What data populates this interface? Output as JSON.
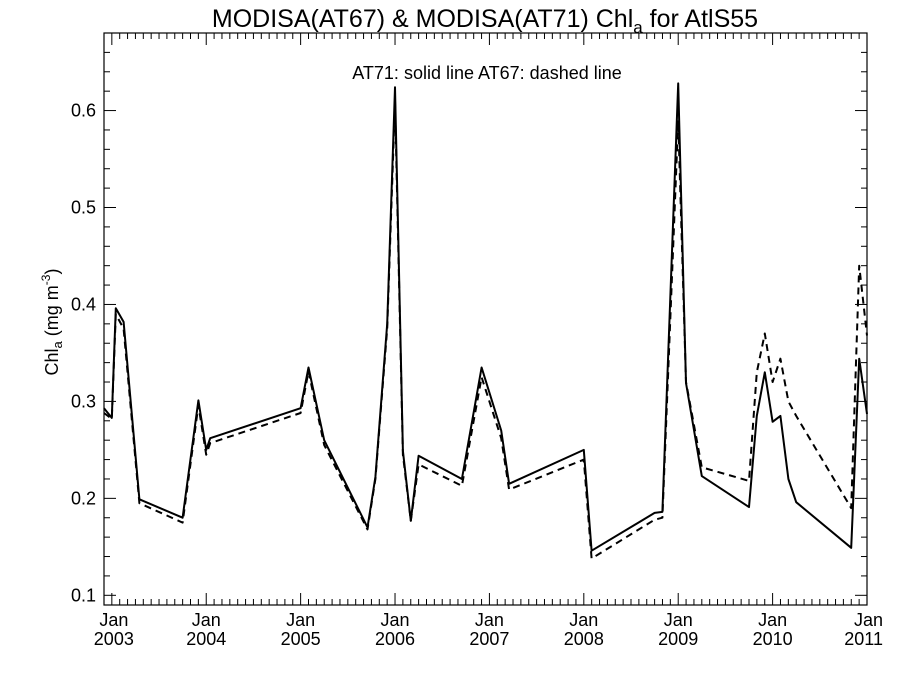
{
  "chart_data": {
    "type": "line",
    "title": {
      "main": "MODISA(AT67) & MODISA(AT71)  Chl",
      "sub": "a",
      "suffix": " for AtlS55"
    },
    "ylabel": {
      "base": "Chl",
      "sub": "a",
      "unit": " (mg m",
      "sup": "-3",
      "close": ")"
    },
    "annotation": "AT71: solid line   AT67: dashed line",
    "xlim": [
      2002.917,
      2011.0
    ],
    "ylim": [
      0.09,
      0.68
    ],
    "x_ticks": [
      {
        "x": 2003.0,
        "month": "Jan",
        "year": "2003"
      },
      {
        "x": 2004.0,
        "month": "Jan",
        "year": "2004"
      },
      {
        "x": 2005.0,
        "month": "Jan",
        "year": "2005"
      },
      {
        "x": 2006.0,
        "month": "Jan",
        "year": "2006"
      },
      {
        "x": 2007.0,
        "month": "Jan",
        "year": "2007"
      },
      {
        "x": 2008.0,
        "month": "Jan",
        "year": "2008"
      },
      {
        "x": 2009.0,
        "month": "Jan",
        "year": "2009"
      },
      {
        "x": 2010.0,
        "month": "Jan",
        "year": "2010"
      },
      {
        "x": 2011.0,
        "month": "Jan",
        "year": "2011"
      }
    ],
    "y_ticks": [
      "0.1",
      "0.2",
      "0.3",
      "0.4",
      "0.5",
      "0.6"
    ],
    "series": [
      {
        "name": "AT71",
        "style": "solid",
        "x": [
          2002.917,
          2003.0,
          2003.042,
          2003.125,
          2003.292,
          2003.75,
          2003.917,
          2004.0,
          2004.042,
          2005.0,
          2005.083,
          2005.25,
          2005.708,
          2005.792,
          2005.917,
          2006.0,
          2006.083,
          2006.167,
          2006.25,
          2006.708,
          2006.917,
          2007.125,
          2007.208,
          2008.0,
          2008.083,
          2008.75,
          2008.833,
          2009.0,
          2009.083,
          2009.25,
          2009.75,
          2009.833,
          2009.917,
          2010.0,
          2010.083,
          2010.167,
          2010.25,
          2010.833,
          2010.917,
          2011.0
        ],
        "values": [
          0.293,
          0.283,
          0.396,
          0.382,
          0.199,
          0.18,
          0.301,
          0.25,
          0.262,
          0.293,
          0.335,
          0.26,
          0.17,
          0.222,
          0.38,
          0.624,
          0.249,
          0.177,
          0.244,
          0.22,
          0.335,
          0.27,
          0.215,
          0.25,
          0.146,
          0.185,
          0.186,
          0.628,
          0.319,
          0.223,
          0.191,
          0.285,
          0.33,
          0.279,
          0.285,
          0.22,
          0.196,
          0.149,
          0.344,
          0.287
        ]
      },
      {
        "name": "AT67",
        "style": "dashed",
        "x": [
          2002.917,
          2003.0,
          2003.042,
          2003.125,
          2003.292,
          2003.75,
          2003.917,
          2004.0,
          2004.042,
          2005.0,
          2005.083,
          2005.25,
          2005.708,
          2005.792,
          2005.917,
          2006.0,
          2006.083,
          2006.167,
          2006.25,
          2006.708,
          2006.917,
          2007.125,
          2007.208,
          2008.0,
          2008.083,
          2008.75,
          2008.833,
          2009.0,
          2009.083,
          2009.25,
          2009.75,
          2009.833,
          2009.917,
          2010.0,
          2010.083,
          2010.167,
          2010.25,
          2010.833,
          2010.917,
          2011.0
        ],
        "values": [
          0.288,
          0.282,
          0.39,
          0.375,
          0.195,
          0.175,
          0.296,
          0.245,
          0.257,
          0.288,
          0.331,
          0.255,
          0.168,
          0.22,
          0.375,
          0.61,
          0.245,
          0.177,
          0.235,
          0.213,
          0.325,
          0.262,
          0.209,
          0.24,
          0.138,
          0.178,
          0.18,
          0.59,
          0.32,
          0.232,
          0.218,
          0.33,
          0.37,
          0.32,
          0.344,
          0.3,
          0.285,
          0.19,
          0.44,
          0.368
        ]
      }
    ]
  }
}
